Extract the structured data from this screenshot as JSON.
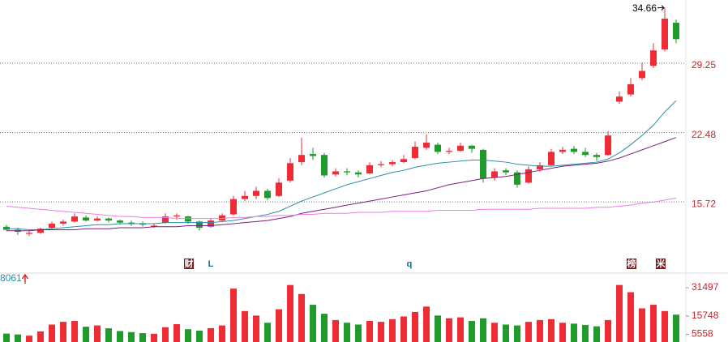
{
  "chart_data": {
    "type": "candlestick",
    "up_color": "#ee2c36",
    "down_color": "#1f9a2b",
    "ylim": [
      8.93,
      35.42
    ],
    "yticks": [
      15.72,
      22.48,
      29.25
    ],
    "grid": true,
    "ohlc": [
      [
        13.3,
        13.5,
        12.9,
        13.0
      ],
      [
        13.0,
        13.2,
        12.5,
        12.8
      ],
      [
        12.6,
        12.9,
        12.4,
        12.7
      ],
      [
        12.7,
        13.2,
        12.6,
        13.1
      ],
      [
        13.2,
        13.8,
        13.1,
        13.6
      ],
      [
        13.6,
        14.0,
        13.4,
        13.8
      ],
      [
        13.8,
        14.6,
        13.7,
        14.3
      ],
      [
        14.2,
        14.4,
        13.8,
        13.9
      ],
      [
        13.9,
        14.3,
        13.8,
        14.1
      ],
      [
        14.1,
        14.2,
        13.7,
        13.9
      ],
      [
        13.9,
        14.0,
        13.5,
        13.7
      ],
      [
        13.7,
        13.9,
        13.4,
        13.6
      ],
      [
        13.6,
        13.8,
        13.3,
        13.5
      ],
      [
        13.3,
        13.6,
        13.2,
        13.4
      ],
      [
        13.7,
        14.6,
        13.6,
        14.3
      ],
      [
        14.3,
        14.6,
        14.0,
        14.4
      ],
      [
        14.3,
        14.4,
        13.6,
        13.8
      ],
      [
        13.8,
        13.9,
        12.9,
        13.2
      ],
      [
        13.3,
        14.1,
        13.2,
        13.9
      ],
      [
        13.9,
        14.6,
        13.8,
        14.4
      ],
      [
        14.5,
        16.3,
        14.4,
        16.0
      ],
      [
        16.0,
        16.8,
        15.8,
        16.3
      ],
      [
        16.3,
        17.2,
        16.0,
        16.8
      ],
      [
        16.8,
        17.0,
        15.9,
        16.1
      ],
      [
        16.3,
        18.0,
        16.2,
        17.6
      ],
      [
        17.8,
        20.0,
        17.6,
        19.5
      ],
      [
        19.6,
        22.0,
        19.3,
        20.3
      ],
      [
        20.4,
        21.0,
        19.8,
        20.2
      ],
      [
        20.3,
        20.5,
        18.1,
        18.3
      ],
      [
        18.4,
        19.0,
        18.2,
        18.7
      ],
      [
        18.7,
        19.0,
        18.3,
        18.6
      ],
      [
        18.6,
        18.8,
        18.1,
        18.4
      ],
      [
        18.5,
        19.6,
        18.4,
        19.3
      ],
      [
        19.3,
        19.7,
        19.1,
        19.4
      ],
      [
        19.4,
        19.8,
        19.2,
        19.6
      ],
      [
        19.6,
        20.3,
        19.5,
        19.9
      ],
      [
        20.0,
        21.6,
        19.9,
        21.1
      ],
      [
        21.0,
        22.3,
        20.8,
        21.5
      ],
      [
        21.3,
        21.5,
        20.4,
        20.6
      ],
      [
        20.6,
        21.0,
        20.4,
        20.7
      ],
      [
        20.7,
        21.5,
        20.6,
        21.2
      ],
      [
        21.2,
        21.3,
        20.5,
        20.9
      ],
      [
        20.8,
        20.9,
        17.6,
        18.0
      ],
      [
        18.1,
        19.0,
        17.8,
        18.7
      ],
      [
        18.8,
        19.0,
        18.3,
        18.6
      ],
      [
        18.6,
        18.8,
        17.1,
        17.4
      ],
      [
        17.6,
        19.2,
        17.5,
        18.9
      ],
      [
        18.9,
        19.6,
        18.7,
        19.3
      ],
      [
        19.3,
        20.9,
        19.2,
        20.6
      ],
      [
        20.6,
        21.1,
        20.4,
        20.8
      ],
      [
        20.9,
        21.2,
        20.4,
        20.6
      ],
      [
        20.6,
        21.0,
        20.1,
        20.3
      ],
      [
        20.3,
        20.5,
        19.7,
        20.1
      ],
      [
        20.3,
        22.6,
        20.2,
        22.2
      ],
      [
        25.5,
        26.5,
        25.3,
        26.0
      ],
      [
        26.2,
        27.8,
        26.0,
        27.2
      ],
      [
        27.8,
        29.3,
        27.6,
        28.5
      ],
      [
        29.0,
        31.2,
        28.8,
        30.5
      ],
      [
        30.6,
        34.66,
        30.4,
        33.6
      ],
      [
        33.2,
        33.5,
        31.2,
        31.6
      ]
    ],
    "lines": [
      {
        "color": "#2a8fa8",
        "values": [
          13.1,
          13.1,
          13.0,
          13.0,
          13.1,
          13.2,
          13.3,
          13.4,
          13.5,
          13.5,
          13.6,
          13.6,
          13.6,
          13.6,
          13.7,
          13.7,
          13.7,
          13.7,
          13.7,
          13.8,
          13.9,
          14.1,
          14.3,
          14.5,
          14.8,
          15.3,
          15.8,
          16.2,
          16.6,
          17.0,
          17.4,
          17.7,
          18.0,
          18.3,
          18.6,
          18.8,
          19.1,
          19.3,
          19.5,
          19.6,
          19.7,
          19.8,
          19.8,
          19.7,
          19.6,
          19.4,
          19.3,
          19.2,
          19.2,
          19.3,
          19.4,
          19.5,
          19.6,
          19.9,
          20.5,
          21.3,
          22.2,
          23.2,
          24.5,
          25.6
        ]
      },
      {
        "color": "#7a1f7e",
        "values": [
          12.9,
          12.9,
          12.9,
          13.0,
          13.0,
          13.0,
          13.0,
          13.1,
          13.1,
          13.1,
          13.2,
          13.2,
          13.2,
          13.3,
          13.3,
          13.3,
          13.4,
          13.4,
          13.4,
          13.5,
          13.6,
          13.7,
          13.8,
          13.9,
          14.1,
          14.3,
          14.6,
          14.8,
          15.0,
          15.2,
          15.4,
          15.6,
          15.8,
          16.0,
          16.2,
          16.4,
          16.6,
          16.8,
          17.1,
          17.4,
          17.6,
          17.8,
          18.0,
          18.1,
          18.2,
          18.4,
          18.6,
          18.8,
          19.0,
          19.2,
          19.3,
          19.4,
          19.5,
          19.7,
          20.0,
          20.4,
          20.8,
          21.2,
          21.6,
          22.0
        ]
      },
      {
        "color": "#ee7de6",
        "values": [
          15.3,
          15.2,
          15.1,
          15.0,
          14.9,
          14.8,
          14.7,
          14.6,
          14.5,
          14.4,
          14.3,
          14.3,
          14.2,
          14.2,
          14.2,
          14.1,
          14.1,
          14.1,
          14.1,
          14.1,
          14.2,
          14.2,
          14.3,
          14.3,
          14.4,
          14.4,
          14.5,
          14.5,
          14.6,
          14.6,
          14.6,
          14.7,
          14.7,
          14.7,
          14.8,
          14.8,
          14.8,
          14.8,
          14.9,
          14.9,
          14.9,
          14.9,
          15.0,
          15.0,
          15.0,
          15.0,
          15.0,
          15.1,
          15.1,
          15.1,
          15.1,
          15.1,
          15.2,
          15.2,
          15.3,
          15.4,
          15.6,
          15.7,
          15.9,
          16.1
        ]
      }
    ],
    "volume": {
      "ylim": [
        1300,
        36900
      ],
      "yticks": [
        5558,
        15748,
        31497
      ],
      "values": [
        6000,
        5500,
        4800,
        7200,
        11000,
        12500,
        13000,
        9800,
        10500,
        8900,
        7400,
        6800,
        6200,
        5900,
        9500,
        11200,
        8400,
        7600,
        9000,
        10500,
        31000,
        18500,
        16000,
        12000,
        19500,
        33000,
        28000,
        22000,
        17000,
        13500,
        12000,
        11000,
        13000,
        12500,
        14000,
        15500,
        18000,
        21000,
        16000,
        14500,
        15000,
        13000,
        14500,
        12000,
        11000,
        10500,
        12500,
        13500,
        14000,
        12000,
        11500,
        10800,
        10000,
        13500,
        33000,
        29000,
        20000,
        22000,
        18500,
        16500
      ]
    },
    "volume_label": "8061",
    "markers": [
      "财",
      "L",
      "q",
      "榜",
      "米"
    ]
  }
}
